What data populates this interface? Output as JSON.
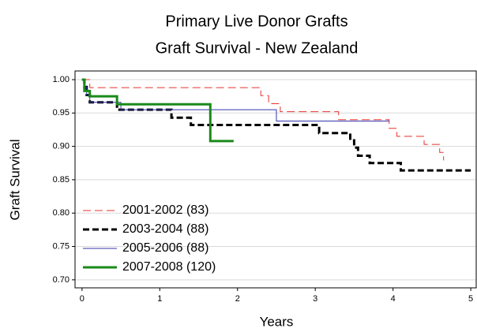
{
  "chart_data": {
    "type": "step",
    "title": "Primary Live Donor Grafts",
    "subtitle": "Graft Survival  -  New Zealand",
    "x_label": "Years",
    "y_label": "Graft Survival",
    "xlim": [
      -0.09,
      5.07
    ],
    "ylim": [
      0.688,
      1.013
    ],
    "xticks": [
      0,
      1,
      2,
      3,
      4,
      5
    ],
    "yticks": [
      {
        "value": 0.7,
        "label": "0.70"
      },
      {
        "value": 0.75,
        "label": "0.75"
      },
      {
        "value": 0.8,
        "label": "0.80"
      },
      {
        "value": 0.85,
        "label": "0.85"
      },
      {
        "value": 0.9,
        "label": "0.90"
      },
      {
        "value": 0.95,
        "label": "0.95"
      },
      {
        "value": 1.0,
        "label": "1.00"
      }
    ],
    "grid": true,
    "legend": "lower left",
    "series": [
      {
        "name": "2001-2002 (83)",
        "color": "#e8322e",
        "dash": "10 5",
        "width": 1,
        "x": [
          0,
          0.1,
          2.3,
          2.4,
          2.55,
          3.3,
          3.95,
          4.05,
          4.4,
          4.6,
          4.65
        ],
        "values": [
          1.0,
          0.988,
          0.976,
          0.964,
          0.952,
          0.94,
          0.927,
          0.915,
          0.903,
          0.891,
          0.879
        ]
      },
      {
        "name": "2003-2004 (88)",
        "color": "#000000",
        "dash": "8 4",
        "width": 3,
        "x": [
          0,
          0.03,
          0.06,
          0.1,
          0.45,
          1.15,
          1.4,
          3.05,
          3.45,
          3.5,
          3.55,
          3.7,
          4.1,
          5.0
        ],
        "values": [
          1.0,
          0.989,
          0.977,
          0.966,
          0.955,
          0.943,
          0.932,
          0.92,
          0.909,
          0.898,
          0.886,
          0.875,
          0.864,
          0.864
        ]
      },
      {
        "name": "2005-2006 (88)",
        "color": "#3333aa",
        "dash": "",
        "width": 1,
        "x": [
          0,
          0.03,
          0.06,
          0.1,
          0.5,
          2.5,
          3.95
        ],
        "values": [
          1.0,
          0.989,
          0.977,
          0.966,
          0.955,
          0.938,
          0.938
        ]
      },
      {
        "name": "2007-2008 (120)",
        "color": "#1a8a1a",
        "dash": "",
        "width": 3,
        "x": [
          0,
          0.03,
          0.1,
          0.45,
          1.65,
          1.95
        ],
        "values": [
          1.0,
          0.983,
          0.975,
          0.963,
          0.908,
          0.908
        ]
      }
    ]
  }
}
